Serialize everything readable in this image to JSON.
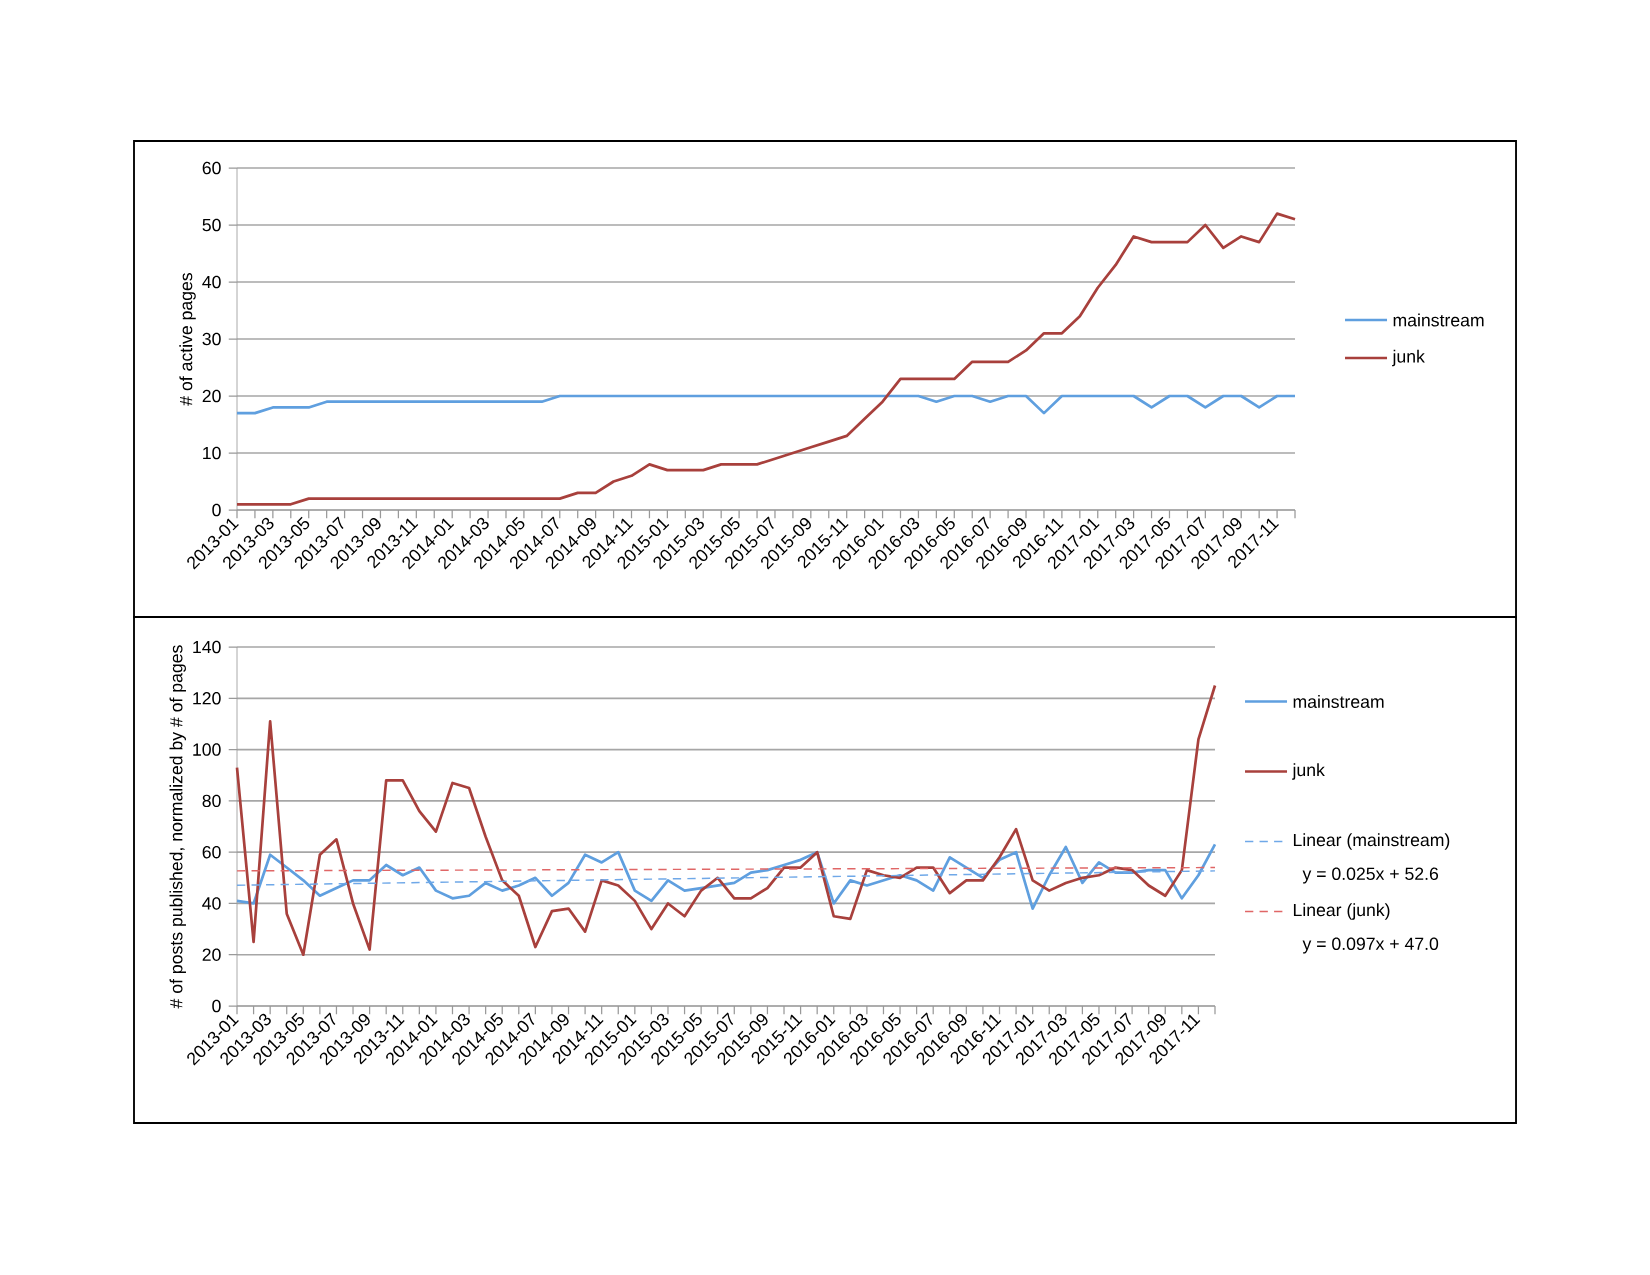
{
  "chart_data": [
    {
      "type": "line",
      "ylabel": "# of active pages",
      "x": [
        "2013-01",
        "2013-02",
        "2013-03",
        "2013-04",
        "2013-05",
        "2013-06",
        "2013-07",
        "2013-08",
        "2013-09",
        "2013-10",
        "2013-11",
        "2013-12",
        "2014-01",
        "2014-02",
        "2014-03",
        "2014-04",
        "2014-05",
        "2014-06",
        "2014-07",
        "2014-08",
        "2014-09",
        "2014-10",
        "2014-11",
        "2014-12",
        "2015-01",
        "2015-02",
        "2015-03",
        "2015-04",
        "2015-05",
        "2015-06",
        "2015-07",
        "2015-08",
        "2015-09",
        "2015-10",
        "2015-11",
        "2015-12",
        "2016-01",
        "2016-02",
        "2016-03",
        "2016-04",
        "2016-05",
        "2016-06",
        "2016-07",
        "2016-08",
        "2016-09",
        "2016-10",
        "2016-11",
        "2016-12",
        "2017-01",
        "2017-02",
        "2017-03",
        "2017-04",
        "2017-05",
        "2017-06",
        "2017-07",
        "2017-08",
        "2017-09",
        "2017-10",
        "2017-11",
        "2017-12"
      ],
      "xlim": [
        "2013-01",
        "2017-12"
      ],
      "xticks": [
        "2013-01",
        {
          "value": "2013-02",
          "label": null
        },
        "2013-03",
        {
          "value": "2013-04",
          "label": null
        },
        "2013-05",
        {
          "value": "2013-06",
          "label": null
        },
        "2013-07",
        {
          "value": "2013-08",
          "label": null
        },
        "2013-09",
        {
          "value": "2013-10",
          "label": null
        },
        "2013-11",
        {
          "value": "2013-12",
          "label": null
        },
        "2014-01",
        {
          "value": "2014-02",
          "label": null
        },
        "2014-03",
        {
          "value": "2014-04",
          "label": null
        },
        "2014-05",
        {
          "value": "2014-06",
          "label": null
        },
        "2014-07",
        {
          "value": "2014-08",
          "label": null
        },
        "2014-09",
        {
          "value": "2014-10",
          "label": null
        },
        "2014-11",
        {
          "value": "2014-12",
          "label": null
        },
        "2015-01",
        {
          "value": "2015-02",
          "label": null
        },
        "2015-03",
        {
          "value": "2015-04",
          "label": null
        },
        "2015-05",
        {
          "value": "2015-06",
          "label": null
        },
        "2015-07",
        {
          "value": "2015-08",
          "label": null
        },
        "2015-09",
        {
          "value": "2015-10",
          "label": null
        },
        "2015-11",
        {
          "value": "2015-12",
          "label": null
        },
        "2016-01",
        {
          "value": "2016-02",
          "label": null
        },
        "2016-03",
        {
          "value": "2016-04",
          "label": null
        },
        "2016-05",
        {
          "value": "2016-06",
          "label": null
        },
        "2016-07",
        {
          "value": "2016-08",
          "label": null
        },
        "2016-09",
        {
          "value": "2016-10",
          "label": null
        },
        "2016-11",
        {
          "value": "2016-12",
          "label": null
        },
        "2017-01",
        {
          "value": "2017-02",
          "label": null
        },
        "2017-03",
        {
          "value": "2017-04",
          "label": null
        },
        "2017-05",
        {
          "value": "2017-06",
          "label": null
        },
        "2017-07",
        {
          "value": "2017-08",
          "label": null
        },
        "2017-09",
        {
          "value": "2017-10",
          "label": null
        },
        "2017-11",
        {
          "value": "2017-12",
          "label": null
        }
      ],
      "ylim": [
        0,
        60
      ],
      "yticks": [
        0,
        10,
        20,
        30,
        40,
        50,
        60
      ],
      "grid": "y",
      "legend": "right",
      "series": [
        {
          "name": "mainstream",
          "color": "#5f9fdf",
          "values": [
            17,
            17,
            18,
            18,
            18,
            19,
            19,
            19,
            19,
            19,
            19,
            19,
            19,
            19,
            19,
            19,
            19,
            19,
            20,
            20,
            20,
            20,
            20,
            20,
            20,
            20,
            20,
            20,
            20,
            20,
            20,
            20,
            20,
            20,
            20,
            20,
            20,
            20,
            20,
            19,
            20,
            20,
            19,
            20,
            20,
            17,
            20,
            20,
            20,
            20,
            20,
            18,
            20,
            20,
            18,
            20,
            20,
            18,
            20,
            20
          ]
        },
        {
          "name": "junk",
          "color": "#a8403c",
          "values": [
            1,
            1,
            1,
            1,
            2,
            2,
            2,
            2,
            2,
            2,
            2,
            2,
            2,
            2,
            2,
            2,
            2,
            2,
            2,
            3,
            3,
            5,
            6,
            8,
            7,
            7,
            7,
            8,
            8,
            8,
            9,
            10,
            11,
            12,
            13,
            16,
            19,
            23,
            23,
            23,
            23,
            26,
            26,
            26,
            28,
            31,
            31,
            34,
            39,
            43,
            48,
            47,
            47,
            47,
            50,
            46,
            48,
            47,
            52,
            51
          ]
        }
      ]
    },
    {
      "type": "line",
      "ylabel": "# of posts published, normalized by # of pages",
      "x": [
        "2013-01",
        "2013-02",
        "2013-03",
        "2013-04",
        "2013-05",
        "2013-06",
        "2013-07",
        "2013-08",
        "2013-09",
        "2013-10",
        "2013-11",
        "2013-12",
        "2014-01",
        "2014-02",
        "2014-03",
        "2014-04",
        "2014-05",
        "2014-06",
        "2014-07",
        "2014-08",
        "2014-09",
        "2014-10",
        "2014-11",
        "2014-12",
        "2015-01",
        "2015-02",
        "2015-03",
        "2015-04",
        "2015-05",
        "2015-06",
        "2015-07",
        "2015-08",
        "2015-09",
        "2015-10",
        "2015-11",
        "2015-12",
        "2016-01",
        "2016-02",
        "2016-03",
        "2016-04",
        "2016-05",
        "2016-06",
        "2016-07",
        "2016-08",
        "2016-09",
        "2016-10",
        "2016-11",
        "2016-12",
        "2017-01",
        "2017-02",
        "2017-03",
        "2017-04",
        "2017-05",
        "2017-06",
        "2017-07",
        "2017-08",
        "2017-09",
        "2017-10",
        "2017-11",
        "2017-12"
      ],
      "xlim": [
        "2013-01",
        "2017-12"
      ],
      "xticks": [
        "2013-01",
        {
          "value": "2013-02",
          "label": null
        },
        "2013-03",
        {
          "value": "2013-04",
          "label": null
        },
        "2013-05",
        {
          "value": "2013-06",
          "label": null
        },
        "2013-07",
        {
          "value": "2013-08",
          "label": null
        },
        "2013-09",
        {
          "value": "2013-10",
          "label": null
        },
        "2013-11",
        {
          "value": "2013-12",
          "label": null
        },
        "2014-01",
        {
          "value": "2014-02",
          "label": null
        },
        "2014-03",
        {
          "value": "2014-04",
          "label": null
        },
        "2014-05",
        {
          "value": "2014-06",
          "label": null
        },
        "2014-07",
        {
          "value": "2014-08",
          "label": null
        },
        "2014-09",
        {
          "value": "2014-10",
          "label": null
        },
        "2014-11",
        {
          "value": "2014-12",
          "label": null
        },
        "2015-01",
        {
          "value": "2015-02",
          "label": null
        },
        "2015-03",
        {
          "value": "2015-04",
          "label": null
        },
        "2015-05",
        {
          "value": "2015-06",
          "label": null
        },
        "2015-07",
        {
          "value": "2015-08",
          "label": null
        },
        "2015-09",
        {
          "value": "2015-10",
          "label": null
        },
        "2015-11",
        {
          "value": "2015-12",
          "label": null
        },
        "2016-01",
        {
          "value": "2016-02",
          "label": null
        },
        "2016-03",
        {
          "value": "2016-04",
          "label": null
        },
        "2016-05",
        {
          "value": "2016-06",
          "label": null
        },
        "2016-07",
        {
          "value": "2016-08",
          "label": null
        },
        "2016-09",
        {
          "value": "2016-10",
          "label": null
        },
        "2016-11",
        {
          "value": "2016-12",
          "label": null
        },
        "2017-01",
        {
          "value": "2017-02",
          "label": null
        },
        "2017-03",
        {
          "value": "2017-04",
          "label": null
        },
        "2017-05",
        {
          "value": "2017-06",
          "label": null
        },
        "2017-07",
        {
          "value": "2017-08",
          "label": null
        },
        "2017-09",
        {
          "value": "2017-10",
          "label": null
        },
        "2017-11",
        {
          "value": "2017-12",
          "label": null
        }
      ],
      "ylim": [
        0,
        140
      ],
      "yticks": [
        0,
        20,
        40,
        60,
        80,
        100,
        120,
        140
      ],
      "grid": "y",
      "legend": "right",
      "annotations": [
        "y = 0.025x + 52.6",
        "y = 0.097x + 47.0"
      ],
      "series": [
        {
          "name": "mainstream",
          "color": "#5f9fdf",
          "values": [
            41,
            40,
            59,
            54,
            49,
            43,
            46,
            49,
            49,
            55,
            51,
            54,
            45,
            42,
            43,
            48,
            45,
            47,
            50,
            43,
            48,
            59,
            56,
            60,
            45,
            41,
            49,
            45,
            46,
            47,
            48,
            52,
            53,
            55,
            57,
            60,
            40,
            49,
            47,
            49,
            51,
            49,
            45,
            58,
            54,
            50,
            57,
            60,
            38,
            51,
            62,
            48,
            56,
            52,
            52,
            53,
            53,
            42,
            51,
            63
          ]
        },
        {
          "name": "junk",
          "color": "#a8403c",
          "values": [
            93,
            25,
            111,
            36,
            20,
            59,
            65,
            40,
            22,
            88,
            88,
            76,
            68,
            87,
            85,
            66,
            49,
            43,
            23,
            37,
            38,
            29,
            49,
            47,
            41,
            30,
            40,
            35,
            45,
            50,
            42,
            42,
            46,
            54,
            54,
            60,
            35,
            34,
            53,
            51,
            50,
            54,
            54,
            44,
            49,
            49,
            58,
            69,
            49,
            45,
            48,
            50,
            51,
            54,
            53,
            47,
            43,
            53,
            104,
            125
          ]
        },
        {
          "name": "Linear (mainstream)",
          "color": "#6fa8e8",
          "line_style": "dashed",
          "x": [
            "2013-01",
            "2017-12"
          ],
          "values": [
            47.1,
            52.7
          ]
        },
        {
          "name": "Linear (junk)",
          "color": "#e06666",
          "line_style": "dashed",
          "x": [
            "2013-01",
            "2017-12"
          ],
          "values": [
            52.7,
            54.0
          ]
        }
      ]
    }
  ]
}
